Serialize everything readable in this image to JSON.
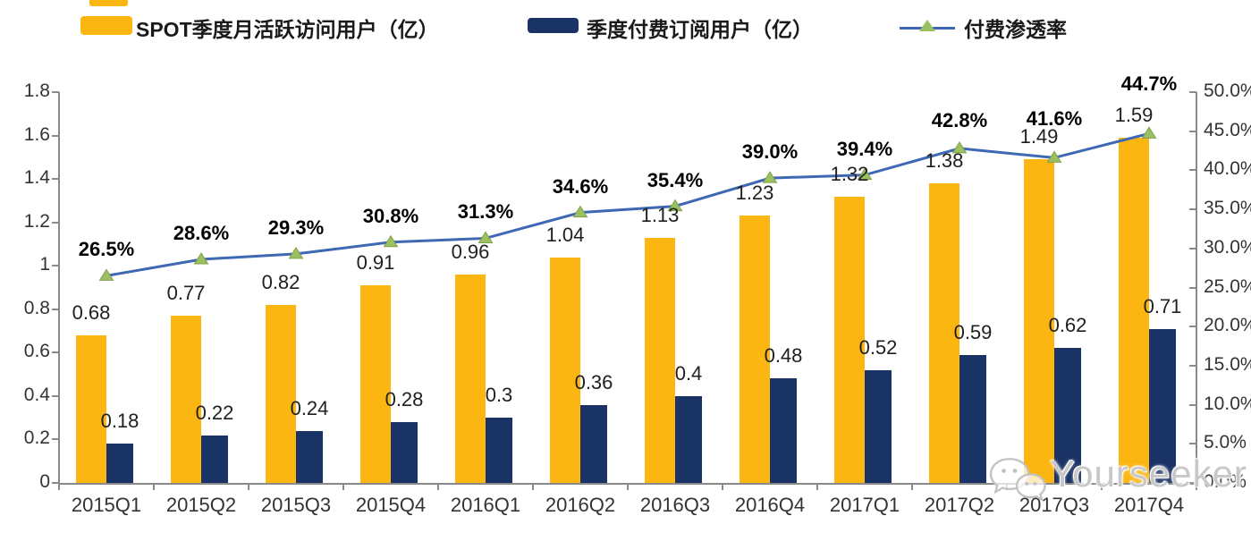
{
  "page": {
    "background": "#ffffff"
  },
  "legend": {
    "position": "top",
    "items": [
      {
        "label": "SPOT季度月活跃访问用户（亿）",
        "swatch": "bar",
        "color": "#FBB612"
      },
      {
        "label": "季度付费订阅用户（亿）",
        "swatch": "bar",
        "color": "#1A3366"
      },
      {
        "label": "付费渗透率",
        "swatch": "line-triangle-marker",
        "line_color": "#3E68B4",
        "marker_color": "#9CC061"
      }
    ]
  },
  "chart_data": {
    "type": "bar",
    "subtype": "combo-bar-line-dual-axis",
    "title": "",
    "grid": false,
    "legend_position": "top",
    "categories": [
      "2015Q1",
      "2015Q2",
      "2015Q3",
      "2015Q4",
      "2016Q1",
      "2016Q2",
      "2016Q3",
      "2016Q4",
      "2017Q1",
      "2017Q2",
      "2017Q3",
      "2017Q4"
    ],
    "series": [
      {
        "name": "SPOT季度月活跃访问用户（亿）",
        "type": "bar",
        "axis": "left",
        "color": "#FBB612",
        "values": [
          0.68,
          0.77,
          0.82,
          0.91,
          0.96,
          1.04,
          1.13,
          1.23,
          1.32,
          1.38,
          1.49,
          1.59
        ],
        "labels": [
          "0.68",
          "0.77",
          "0.82",
          "0.91",
          "0.96",
          "1.04",
          "1.13",
          "1.23",
          "1.32",
          "1.38",
          "1.49",
          "1.59"
        ]
      },
      {
        "name": "季度付费订阅用户（亿）",
        "type": "bar",
        "axis": "left",
        "color": "#1A3366",
        "values": [
          0.18,
          0.22,
          0.24,
          0.28,
          0.3,
          0.36,
          0.4,
          0.48,
          0.52,
          0.59,
          0.62,
          0.71
        ],
        "labels": [
          "0.18",
          "0.22",
          "0.24",
          "0.28",
          "0.3",
          "0.36",
          "0.4",
          "0.48",
          "0.52",
          "0.59",
          "0.62",
          "0.71"
        ]
      },
      {
        "name": "付费渗透率",
        "type": "line",
        "axis": "right",
        "color": "#3E68B4",
        "marker": "triangle",
        "marker_color": "#9CC061",
        "values": [
          26.5,
          28.6,
          29.3,
          30.8,
          31.3,
          34.6,
          35.4,
          39.0,
          39.4,
          42.8,
          41.6,
          44.7
        ],
        "labels": [
          "26.5%",
          "28.6%",
          "29.3%",
          "30.8%",
          "31.3%",
          "34.6%",
          "35.4%",
          "39.0%",
          "39.4%",
          "42.8%",
          "41.6%",
          "44.7%"
        ]
      }
    ],
    "left_axis": {
      "min": 0,
      "max": 1.8,
      "ticks": [
        "0",
        "0.2",
        "0.4",
        "0.6",
        "0.8",
        "1",
        "1.2",
        "1.4",
        "1.6",
        "1.8"
      ]
    },
    "right_axis": {
      "min": 0,
      "max": 50,
      "ticks": [
        "0.0%",
        "5.0%",
        "10.0%",
        "15.0%",
        "20.0%",
        "25.0%",
        "30.0%",
        "35.0%",
        "40.0%",
        "45.0%",
        "50.0%"
      ]
    }
  },
  "watermark": {
    "text": "Yourseeker",
    "icon": "wechat-icon"
  }
}
